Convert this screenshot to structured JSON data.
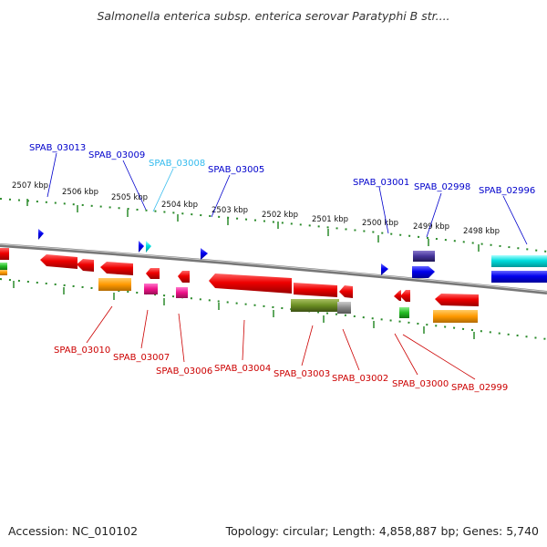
{
  "title": "Salmonella enterica subsp. enterica serovar Paratyphi B str....",
  "footer": {
    "accession": "Accession: NC_010102",
    "summary": "Topology: circular; Length: 4,858,887 bp; Genes: 5,740"
  },
  "kbp_ticks": [
    "2507 kbp",
    "2506 kbp",
    "2505 kbp",
    "2504 kbp",
    "2503 kbp",
    "2502 kbp",
    "2501 kbp",
    "2500 kbp",
    "2499 kbp",
    "2498 kbp"
  ],
  "genes_upper": [
    {
      "label": "SPAB_03013",
      "color": "#0000cc"
    },
    {
      "label": "SPAB_03009",
      "color": "#0000cc"
    },
    {
      "label": "SPAB_03008",
      "color": "#33bbee"
    },
    {
      "label": "SPAB_03005",
      "color": "#0000cc"
    },
    {
      "label": "SPAB_03001",
      "color": "#0000cc"
    },
    {
      "label": "SPAB_02998",
      "color": "#0000cc"
    },
    {
      "label": "SPAB_02996",
      "color": "#0000cc"
    }
  ],
  "genes_lower": [
    {
      "label": "SPAB_03010",
      "color": "#cc0000"
    },
    {
      "label": "SPAB_03007",
      "color": "#cc0000"
    },
    {
      "label": "SPAB_03006",
      "color": "#cc0000"
    },
    {
      "label": "SPAB_03004",
      "color": "#cc0000"
    },
    {
      "label": "SPAB_03003",
      "color": "#cc0000"
    },
    {
      "label": "SPAB_03002",
      "color": "#cc0000"
    },
    {
      "label": "SPAB_03000",
      "color": "#cc0000"
    },
    {
      "label": "SPAB_02999",
      "color": "#cc0000"
    }
  ],
  "colors": {
    "backbone": "#888888",
    "tick": "#2a8a2a",
    "forward": "#0000ee",
    "reverse": "#ee0000",
    "cyan": "#00dddd",
    "orange": "#ff9900",
    "magenta": "#ee1188",
    "green": "#22bb22",
    "olive": "#6b8e23",
    "slate": "#443399"
  }
}
